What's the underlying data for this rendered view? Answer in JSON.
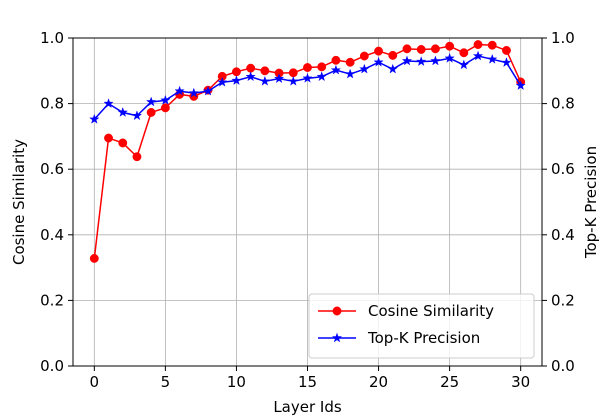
{
  "chart_data": {
    "type": "line",
    "xlabel": "Layer Ids",
    "ylabel_left": "Cosine Similarity",
    "ylabel_right": "Top-K Precision",
    "xlim": [
      -1.5,
      31.5
    ],
    "ylim": [
      0.0,
      1.0
    ],
    "x_ticks": [
      0,
      5,
      10,
      15,
      20,
      25,
      30
    ],
    "y_ticks": [
      0.0,
      0.2,
      0.4,
      0.6,
      0.8,
      1.0
    ],
    "y_tick_labels": [
      "0.0",
      "0.2",
      "0.4",
      "0.6",
      "0.8",
      "1.0"
    ],
    "grid": true,
    "legend_position": "lower-right",
    "x": [
      0,
      1,
      2,
      3,
      4,
      5,
      6,
      7,
      8,
      9,
      10,
      11,
      12,
      13,
      14,
      15,
      16,
      17,
      18,
      19,
      20,
      21,
      22,
      23,
      24,
      25,
      26,
      27,
      28,
      29,
      30
    ],
    "series": [
      {
        "name": "Cosine Similarity",
        "axis": "left",
        "color": "#ff0000",
        "marker": "circle",
        "values": [
          0.328,
          0.695,
          0.68,
          0.638,
          0.773,
          0.787,
          0.828,
          0.822,
          0.841,
          0.883,
          0.897,
          0.908,
          0.9,
          0.893,
          0.894,
          0.91,
          0.912,
          0.932,
          0.926,
          0.945,
          0.96,
          0.947,
          0.967,
          0.965,
          0.967,
          0.975,
          0.955,
          0.98,
          0.978,
          0.962,
          0.866
        ]
      },
      {
        "name": "Top-K Precision",
        "axis": "right",
        "color": "#0000ff",
        "marker": "star",
        "values": [
          0.752,
          0.8,
          0.773,
          0.763,
          0.805,
          0.81,
          0.838,
          0.832,
          0.838,
          0.865,
          0.87,
          0.882,
          0.868,
          0.876,
          0.868,
          0.877,
          0.882,
          0.902,
          0.89,
          0.905,
          0.926,
          0.905,
          0.93,
          0.928,
          0.93,
          0.938,
          0.918,
          0.945,
          0.935,
          0.925,
          0.855
        ]
      }
    ]
  }
}
